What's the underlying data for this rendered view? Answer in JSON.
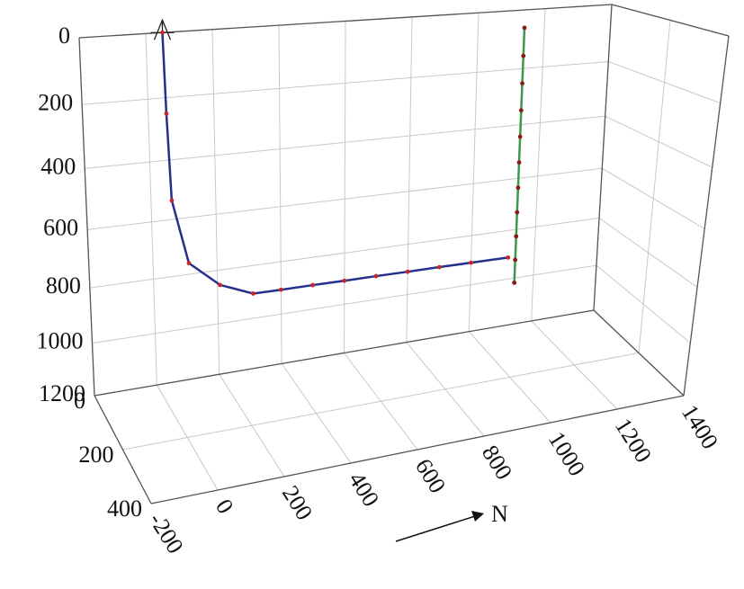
{
  "chart_data": {
    "type": "line3d",
    "xlim": [
      -200,
      1400
    ],
    "xticks": [
      -200,
      0,
      200,
      400,
      600,
      800,
      1000,
      1200,
      1400
    ],
    "ylim": [
      0,
      400
    ],
    "yticks": [
      0,
      200,
      400
    ],
    "zlim": [
      0,
      1200
    ],
    "zticks": [
      0,
      200,
      400,
      600,
      800,
      1000,
      1200
    ],
    "grid": true,
    "arrow_label": "N",
    "series": [
      {
        "color": "#25308a",
        "marker_color": "#c62828",
        "x": [
          50,
          55,
          64,
          112,
          208,
          312,
          400,
          500,
          600,
          700,
          800,
          900,
          1000,
          1117
        ],
        "y": [
          0,
          0,
          0,
          0,
          0,
          0,
          0,
          0,
          0,
          0,
          0,
          0,
          0,
          0
        ],
        "z": [
          0,
          250,
          535,
          760,
          855,
          905,
          906,
          906,
          907,
          907,
          908,
          908,
          909,
          910
        ]
      },
      {
        "color": "#3a9a4a",
        "marker_color": "#8b1a1a",
        "x": [
          1140,
          1140,
          1140,
          1140,
          1140,
          1140,
          1140,
          1140,
          1140,
          1140,
          1140
        ],
        "y": [
          0,
          0,
          0,
          0,
          0,
          0,
          0,
          0,
          0,
          0,
          0
        ],
        "z": [
          60,
          156,
          252,
          348,
          444,
          540,
          636,
          732,
          828,
          924,
          1020
        ]
      }
    ]
  }
}
